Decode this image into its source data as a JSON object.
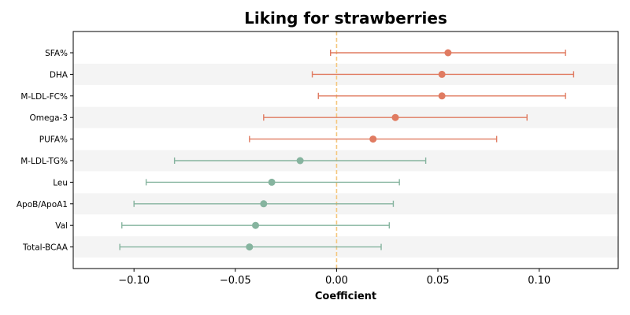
{
  "chart_data": {
    "type": "forest",
    "title": "Liking for strawberries",
    "xlabel": "Coefficient",
    "xlim": [
      -0.13,
      0.139
    ],
    "xticks": [
      -0.1,
      -0.05,
      0.0,
      0.05,
      0.1
    ],
    "xtick_labels": [
      "−0.10",
      "−0.05",
      "0.00",
      "0.05",
      "0.10"
    ],
    "reference_line": 0.0,
    "colors": {
      "positive": "#e07b61",
      "negative": "#86b49f",
      "reference": "#f5c77e",
      "band": "#f4f4f4"
    },
    "rows": [
      {
        "label": "SFA%",
        "estimate": 0.055,
        "lower": -0.003,
        "upper": 0.113
      },
      {
        "label": "DHA",
        "estimate": 0.052,
        "lower": -0.012,
        "upper": 0.117
      },
      {
        "label": "M-LDL-FC%",
        "estimate": 0.052,
        "lower": -0.009,
        "upper": 0.113
      },
      {
        "label": "Omega-3",
        "estimate": 0.029,
        "lower": -0.036,
        "upper": 0.094
      },
      {
        "label": "PUFA%",
        "estimate": 0.018,
        "lower": -0.043,
        "upper": 0.079
      },
      {
        "label": "M-LDL-TG%",
        "estimate": -0.018,
        "lower": -0.08,
        "upper": 0.044
      },
      {
        "label": "Leu",
        "estimate": -0.032,
        "lower": -0.094,
        "upper": 0.031
      },
      {
        "label": "ApoB/ApoA1",
        "estimate": -0.036,
        "lower": -0.1,
        "upper": 0.028
      },
      {
        "label": "Val",
        "estimate": -0.04,
        "lower": -0.106,
        "upper": 0.026
      },
      {
        "label": "Total-BCAA",
        "estimate": -0.043,
        "lower": -0.107,
        "upper": 0.022
      }
    ]
  }
}
